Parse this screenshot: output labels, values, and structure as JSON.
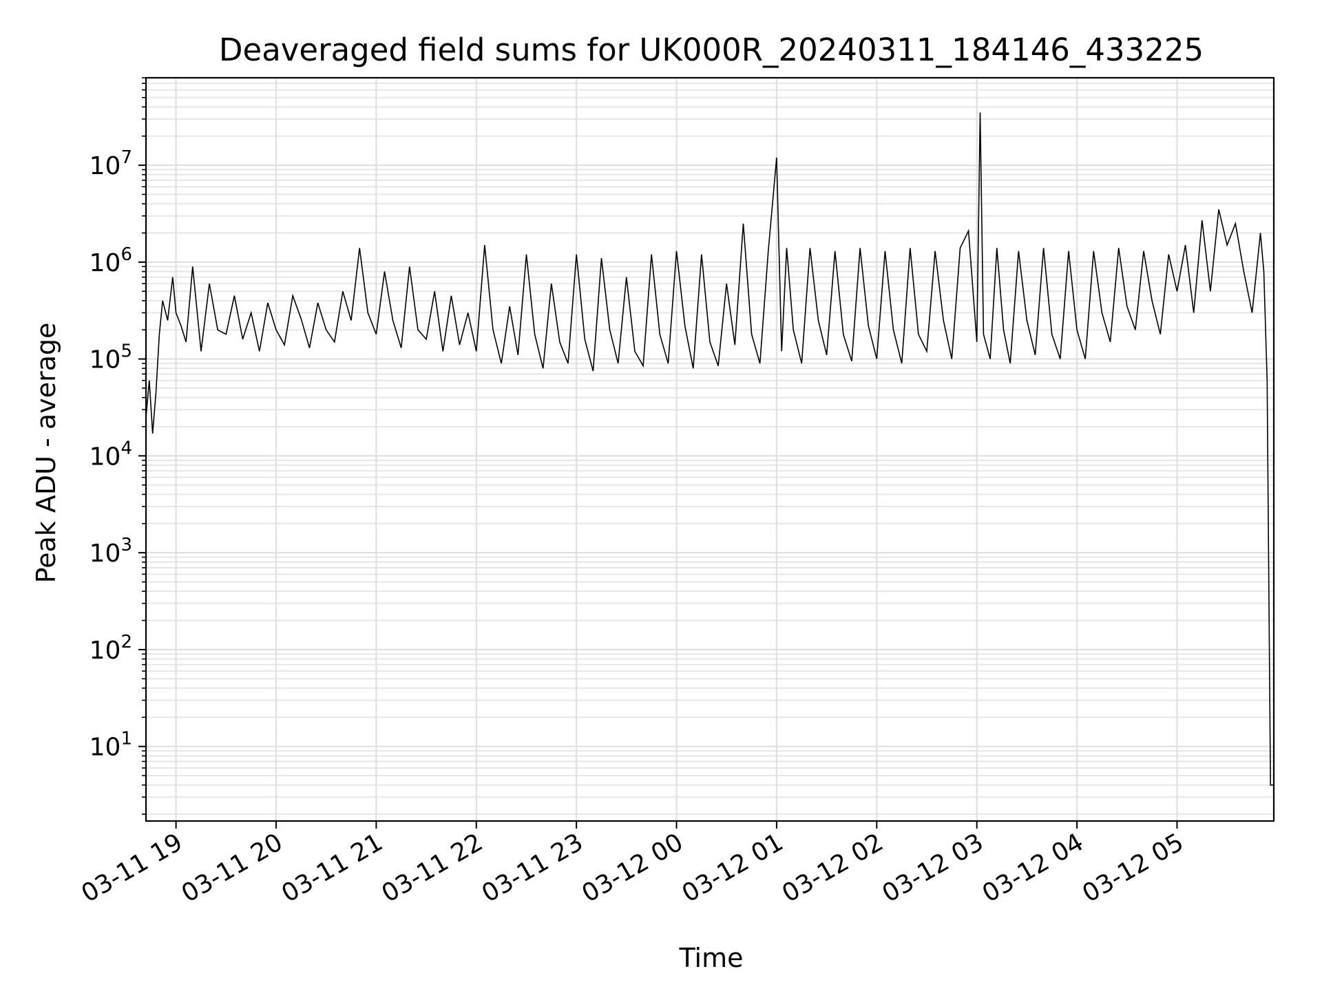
{
  "chart_data": {
    "type": "line",
    "title": "Deaveraged field sums for UK000R_20240311_184146_433225",
    "xlabel": "Time",
    "ylabel": "Peak ADU - average",
    "yscale": "log",
    "ylim": [
      1.7,
      80000000
    ],
    "xlim": [
      "2024-03-11 18:42",
      "2024-03-12 05:58"
    ],
    "grid": true,
    "legend": "none",
    "line_color": "#000000",
    "x_ticks": [
      {
        "time": "2024-03-11 19:00",
        "label": "03-11 19"
      },
      {
        "time": "2024-03-11 20:00",
        "label": "03-11 20"
      },
      {
        "time": "2024-03-11 21:00",
        "label": "03-11 21"
      },
      {
        "time": "2024-03-11 22:00",
        "label": "03-11 22"
      },
      {
        "time": "2024-03-11 23:00",
        "label": "03-11 23"
      },
      {
        "time": "2024-03-12 00:00",
        "label": "03-12 00"
      },
      {
        "time": "2024-03-12 01:00",
        "label": "03-12 01"
      },
      {
        "time": "2024-03-12 02:00",
        "label": "03-12 02"
      },
      {
        "time": "2024-03-12 03:00",
        "label": "03-12 03"
      },
      {
        "time": "2024-03-12 04:00",
        "label": "03-12 04"
      },
      {
        "time": "2024-03-12 05:00",
        "label": "03-12 05"
      }
    ],
    "y_ticks": [
      {
        "value": 10,
        "base": "10",
        "exp": "1"
      },
      {
        "value": 100,
        "base": "10",
        "exp": "2"
      },
      {
        "value": 1000,
        "base": "10",
        "exp": "3"
      },
      {
        "value": 10000,
        "base": "10",
        "exp": "4"
      },
      {
        "value": 100000,
        "base": "10",
        "exp": "5"
      },
      {
        "value": 1000000,
        "base": "10",
        "exp": "6"
      },
      {
        "value": 10000000,
        "base": "10",
        "exp": "7"
      }
    ],
    "series": [
      {
        "x": [
          "2024-03-11 18:42",
          "2024-03-11 18:44",
          "2024-03-11 18:46",
          "2024-03-11 18:48",
          "2024-03-11 18:50",
          "2024-03-11 18:52",
          "2024-03-11 18:55",
          "2024-03-11 18:58",
          "2024-03-11 19:00",
          "2024-03-11 19:03",
          "2024-03-11 19:06",
          "2024-03-11 19:10",
          "2024-03-11 19:15",
          "2024-03-11 19:20",
          "2024-03-11 19:25",
          "2024-03-11 19:30",
          "2024-03-11 19:35",
          "2024-03-11 19:40",
          "2024-03-11 19:45",
          "2024-03-11 19:50",
          "2024-03-11 19:55",
          "2024-03-11 20:00",
          "2024-03-11 20:05",
          "2024-03-11 20:10",
          "2024-03-11 20:15",
          "2024-03-11 20:20",
          "2024-03-11 20:25",
          "2024-03-11 20:30",
          "2024-03-11 20:35",
          "2024-03-11 20:40",
          "2024-03-11 20:45",
          "2024-03-11 20:50",
          "2024-03-11 20:55",
          "2024-03-11 21:00",
          "2024-03-11 21:05",
          "2024-03-11 21:10",
          "2024-03-11 21:15",
          "2024-03-11 21:20",
          "2024-03-11 21:25",
          "2024-03-11 21:30",
          "2024-03-11 21:35",
          "2024-03-11 21:40",
          "2024-03-11 21:45",
          "2024-03-11 21:50",
          "2024-03-11 21:55",
          "2024-03-11 22:00",
          "2024-03-11 22:05",
          "2024-03-11 22:10",
          "2024-03-11 22:15",
          "2024-03-11 22:20",
          "2024-03-11 22:25",
          "2024-03-11 22:30",
          "2024-03-11 22:35",
          "2024-03-11 22:40",
          "2024-03-11 22:45",
          "2024-03-11 22:50",
          "2024-03-11 22:55",
          "2024-03-11 23:00",
          "2024-03-11 23:05",
          "2024-03-11 23:10",
          "2024-03-11 23:15",
          "2024-03-11 23:20",
          "2024-03-11 23:25",
          "2024-03-11 23:30",
          "2024-03-11 23:35",
          "2024-03-11 23:40",
          "2024-03-11 23:45",
          "2024-03-11 23:50",
          "2024-03-11 23:55",
          "2024-03-12 00:00",
          "2024-03-12 00:05",
          "2024-03-12 00:10",
          "2024-03-12 00:15",
          "2024-03-12 00:20",
          "2024-03-12 00:25",
          "2024-03-12 00:30",
          "2024-03-12 00:35",
          "2024-03-12 00:40",
          "2024-03-12 00:45",
          "2024-03-12 00:50",
          "2024-03-12 00:55",
          "2024-03-12 01:00",
          "2024-03-12 01:03",
          "2024-03-12 01:06",
          "2024-03-12 01:10",
          "2024-03-12 01:15",
          "2024-03-12 01:20",
          "2024-03-12 01:25",
          "2024-03-12 01:30",
          "2024-03-12 01:35",
          "2024-03-12 01:40",
          "2024-03-12 01:45",
          "2024-03-12 01:50",
          "2024-03-12 01:55",
          "2024-03-12 02:00",
          "2024-03-12 02:05",
          "2024-03-12 02:10",
          "2024-03-12 02:15",
          "2024-03-12 02:20",
          "2024-03-12 02:25",
          "2024-03-12 02:30",
          "2024-03-12 02:35",
          "2024-03-12 02:40",
          "2024-03-12 02:45",
          "2024-03-12 02:50",
          "2024-03-12 02:55",
          "2024-03-12 03:00",
          "2024-03-12 03:02",
          "2024-03-12 03:04",
          "2024-03-12 03:08",
          "2024-03-12 03:12",
          "2024-03-12 03:16",
          "2024-03-12 03:20",
          "2024-03-12 03:25",
          "2024-03-12 03:30",
          "2024-03-12 03:35",
          "2024-03-12 03:40",
          "2024-03-12 03:45",
          "2024-03-12 03:50",
          "2024-03-12 03:55",
          "2024-03-12 04:00",
          "2024-03-12 04:05",
          "2024-03-12 04:10",
          "2024-03-12 04:15",
          "2024-03-12 04:20",
          "2024-03-12 04:25",
          "2024-03-12 04:30",
          "2024-03-12 04:35",
          "2024-03-12 04:40",
          "2024-03-12 04:45",
          "2024-03-12 04:50",
          "2024-03-12 04:55",
          "2024-03-12 05:00",
          "2024-03-12 05:05",
          "2024-03-12 05:10",
          "2024-03-12 05:15",
          "2024-03-12 05:20",
          "2024-03-12 05:25",
          "2024-03-12 05:30",
          "2024-03-12 05:35",
          "2024-03-12 05:40",
          "2024-03-12 05:45",
          "2024-03-12 05:50",
          "2024-03-12 05:52",
          "2024-03-12 05:54",
          "2024-03-12 05:56",
          "2024-03-12 05:58"
        ],
        "y": [
          25000,
          60000,
          17000,
          45000,
          180000,
          400000,
          250000,
          700000,
          300000,
          220000,
          150000,
          900000,
          120000,
          600000,
          200000,
          180000,
          450000,
          160000,
          300000,
          120000,
          380000,
          200000,
          140000,
          450000,
          260000,
          130000,
          380000,
          200000,
          150000,
          500000,
          250000,
          1400000,
          300000,
          180000,
          800000,
          250000,
          130000,
          900000,
          200000,
          160000,
          500000,
          120000,
          450000,
          140000,
          300000,
          120000,
          1500000,
          200000,
          90000,
          350000,
          110000,
          1200000,
          180000,
          80000,
          600000,
          150000,
          90000,
          1200000,
          160000,
          75000,
          1100000,
          200000,
          90000,
          700000,
          120000,
          85000,
          1200000,
          180000,
          90000,
          1300000,
          220000,
          80000,
          1200000,
          150000,
          85000,
          600000,
          140000,
          2500000,
          180000,
          90000,
          1300000,
          12000000,
          120000,
          1400000,
          200000,
          90000,
          1400000,
          250000,
          110000,
          1300000,
          180000,
          95000,
          1400000,
          220000,
          100000,
          1300000,
          200000,
          90000,
          1400000,
          180000,
          120000,
          1300000,
          250000,
          100000,
          1400000,
          2100000,
          150000,
          35000000,
          180000,
          100000,
          1400000,
          200000,
          90000,
          1300000,
          250000,
          110000,
          1400000,
          180000,
          100000,
          1300000,
          200000,
          100000,
          1300000,
          300000,
          150000,
          1400000,
          350000,
          200000,
          1300000,
          400000,
          180000,
          1200000,
          500000,
          1500000,
          300000,
          2700000,
          500000,
          3500000,
          1500000,
          2500000,
          800000,
          300000,
          2000000,
          800000,
          60000,
          4,
          4
        ]
      }
    ]
  }
}
